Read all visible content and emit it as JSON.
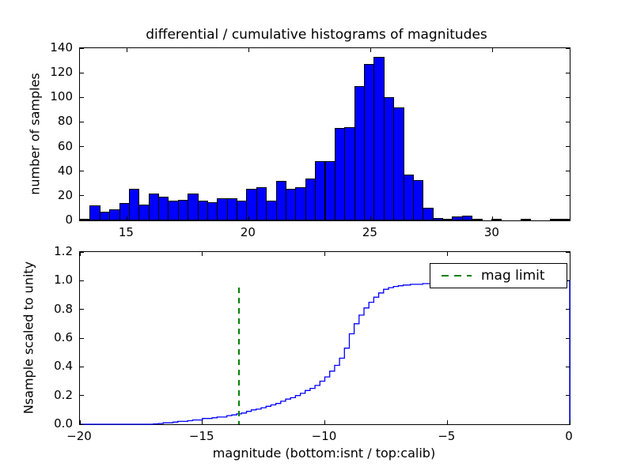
{
  "title": "differential / cumulative histograms of magnitudes",
  "colors": {
    "bar_fill": "#0000ff",
    "bar_edge": "#000000",
    "curve": "#0000ff",
    "mag_limit": "#008000",
    "axis": "#000000",
    "background": "#ffffff"
  },
  "chart_data": [
    {
      "type": "bar",
      "subplot": "top",
      "title": "differential / cumulative histograms of magnitudes",
      "ylabel": "number of samples",
      "xlabel": "",
      "xlim": [
        13.07,
        33.17
      ],
      "ylim": [
        0,
        140
      ],
      "grid": false,
      "xtick_values": [
        15,
        20,
        25,
        30
      ],
      "xtick_labels": [
        "15",
        "20",
        "25",
        "30"
      ],
      "ytick_values": [
        0,
        20,
        40,
        60,
        80,
        100,
        120,
        140
      ],
      "ytick_labels": [
        "0",
        "20",
        "40",
        "60",
        "80",
        "100",
        "120",
        "140"
      ],
      "bins": {
        "start": 13.07,
        "width": 0.402
      },
      "values": [
        1,
        12,
        7,
        9,
        14,
        26,
        13,
        22,
        19,
        16,
        17,
        22,
        16,
        15,
        18,
        18,
        16,
        26,
        27,
        16,
        32,
        26,
        27,
        34,
        48,
        48,
        75,
        76,
        109,
        127,
        133,
        100,
        92,
        37,
        33,
        10,
        2,
        1,
        3,
        4,
        1,
        0,
        1,
        0,
        0,
        1,
        0,
        0,
        1,
        1
      ]
    },
    {
      "type": "line",
      "subplot": "bottom",
      "style": "cumulative-step",
      "ylabel": "Nsample scaled to unity",
      "xlabel": "magnitude (bottom:isnt / top:calib)",
      "xlim": [
        -20,
        0
      ],
      "ylim": [
        0,
        1.2
      ],
      "grid": false,
      "xtick_values": [
        -20,
        -15,
        -10,
        -5,
        0
      ],
      "xtick_labels": [
        "−20",
        "−15",
        "−10",
        "−5",
        "0"
      ],
      "ytick_values": [
        0,
        0.2,
        0.4,
        0.6,
        0.8,
        1.0,
        1.2
      ],
      "ytick_labels": [
        "0.0",
        "0.2",
        "0.4",
        "0.6",
        "0.8",
        "1.0",
        "1.2"
      ],
      "legend": [
        {
          "label": "mag limit",
          "linestyle": "dashed",
          "color": "#008000",
          "position": "upper right"
        }
      ],
      "mag_limit": {
        "x": -13.5,
        "y_bottom": 0.0,
        "y_top": 0.95
      },
      "closes_to_zero_at_right_edge": true,
      "steps": [
        [
          -20,
          0
        ],
        [
          -17.0,
          0.002
        ],
        [
          -16.8,
          0.005
        ],
        [
          -16.6,
          0.01
        ],
        [
          -16.2,
          0.015
        ],
        [
          -16.0,
          0.02
        ],
        [
          -15.6,
          0.025
        ],
        [
          -15.4,
          0.03
        ],
        [
          -15.0,
          0.04
        ],
        [
          -14.6,
          0.045
        ],
        [
          -14.4,
          0.05
        ],
        [
          -14.0,
          0.06
        ],
        [
          -13.8,
          0.065
        ],
        [
          -13.6,
          0.072
        ],
        [
          -13.4,
          0.078
        ],
        [
          -13.2,
          0.09
        ],
        [
          -13.0,
          0.1
        ],
        [
          -12.8,
          0.105
        ],
        [
          -12.6,
          0.115
        ],
        [
          -12.4,
          0.125
        ],
        [
          -12.2,
          0.135
        ],
        [
          -12.0,
          0.145
        ],
        [
          -11.8,
          0.16
        ],
        [
          -11.6,
          0.175
        ],
        [
          -11.4,
          0.185
        ],
        [
          -11.2,
          0.2
        ],
        [
          -11.0,
          0.215
        ],
        [
          -10.8,
          0.235
        ],
        [
          -10.6,
          0.25
        ],
        [
          -10.4,
          0.27
        ],
        [
          -10.2,
          0.3
        ],
        [
          -10.0,
          0.33
        ],
        [
          -9.8,
          0.37
        ],
        [
          -9.6,
          0.41
        ],
        [
          -9.4,
          0.46
        ],
        [
          -9.2,
          0.53
        ],
        [
          -9.0,
          0.63
        ],
        [
          -8.8,
          0.7
        ],
        [
          -8.6,
          0.76
        ],
        [
          -8.4,
          0.81
        ],
        [
          -8.2,
          0.85
        ],
        [
          -8.0,
          0.885
        ],
        [
          -7.8,
          0.915
        ],
        [
          -7.6,
          0.94
        ],
        [
          -7.4,
          0.952
        ],
        [
          -7.2,
          0.96
        ],
        [
          -7.0,
          0.965
        ],
        [
          -6.8,
          0.97
        ],
        [
          -6.5,
          0.975
        ],
        [
          -6.0,
          0.98
        ],
        [
          -5.5,
          0.985
        ],
        [
          -5.0,
          0.99
        ],
        [
          -4.5,
          0.993
        ],
        [
          -4.0,
          0.996
        ],
        [
          -3.6,
          1.0
        ],
        [
          0,
          1.0
        ]
      ]
    }
  ]
}
